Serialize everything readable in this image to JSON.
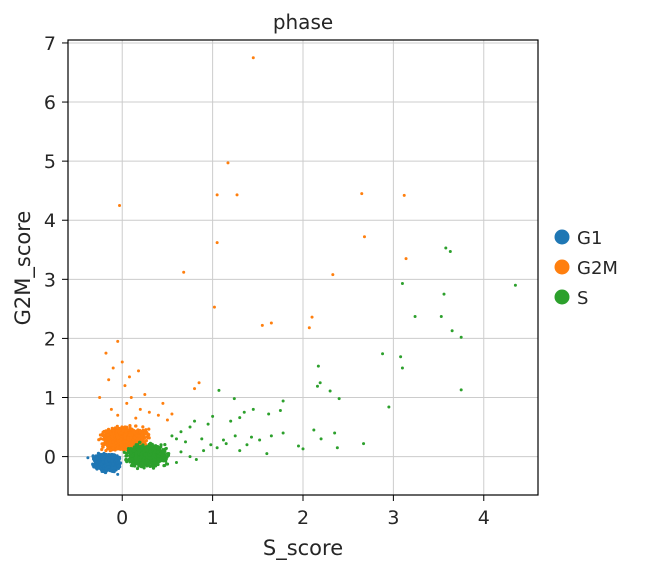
{
  "chart_data": {
    "type": "scatter",
    "title": "phase",
    "xlabel": "S_score",
    "ylabel": "G2M_score",
    "xlim": [
      -0.6,
      4.6
    ],
    "ylim": [
      -0.65,
      7.05
    ],
    "xticks": [
      0,
      1,
      2,
      3,
      4
    ],
    "yticks": [
      0,
      1,
      2,
      3,
      4,
      5,
      6,
      7
    ],
    "grid": true,
    "legend_position": "right",
    "series": [
      {
        "name": "G1",
        "color": "#1f77b4",
        "cluster": {
          "x_range": [
            -0.35,
            0.0
          ],
          "y_range": [
            -0.28,
            0.08
          ],
          "count": 900
        },
        "points": [
          [
            -0.38,
            -0.02
          ],
          [
            -0.3,
            -0.15
          ],
          [
            -0.2,
            -0.25
          ],
          [
            -0.05,
            -0.3
          ]
        ]
      },
      {
        "name": "G2M",
        "color": "#ff7f0e",
        "cluster": {
          "x_range": [
            -0.3,
            0.35
          ],
          "y_range": [
            0.05,
            0.55
          ],
          "count": 1200
        },
        "points": [
          [
            1.45,
            6.75
          ],
          [
            1.17,
            4.97
          ],
          [
            -0.03,
            4.25
          ],
          [
            1.05,
            4.43
          ],
          [
            1.27,
            4.43
          ],
          [
            2.65,
            4.45
          ],
          [
            3.12,
            4.42
          ],
          [
            1.05,
            3.62
          ],
          [
            2.68,
            3.72
          ],
          [
            0.68,
            3.12
          ],
          [
            2.33,
            3.08
          ],
          [
            3.14,
            3.35
          ],
          [
            1.02,
            2.53
          ],
          [
            2.1,
            2.36
          ],
          [
            1.55,
            2.22
          ],
          [
            1.65,
            2.26
          ],
          [
            2.07,
            2.18
          ],
          [
            -0.05,
            1.95
          ],
          [
            -0.18,
            1.75
          ],
          [
            0.0,
            1.6
          ],
          [
            -0.1,
            1.5
          ],
          [
            0.18,
            1.45
          ],
          [
            0.08,
            1.35
          ],
          [
            -0.15,
            1.3
          ],
          [
            0.03,
            1.2
          ],
          [
            0.85,
            1.25
          ],
          [
            0.8,
            1.15
          ],
          [
            0.25,
            1.05
          ],
          [
            0.1,
            1.0
          ],
          [
            -0.25,
            1.0
          ],
          [
            0.45,
            0.9
          ],
          [
            0.05,
            0.9
          ],
          [
            0.2,
            0.8
          ],
          [
            -0.12,
            0.8
          ],
          [
            0.55,
            0.72
          ],
          [
            0.4,
            0.7
          ],
          [
            0.3,
            0.75
          ],
          [
            -0.05,
            0.7
          ],
          [
            0.15,
            0.65
          ],
          [
            0.5,
            0.62
          ]
        ]
      },
      {
        "name": "S",
        "color": "#2ca02c",
        "cluster": {
          "x_range": [
            0.0,
            0.55
          ],
          "y_range": [
            -0.22,
            0.25
          ],
          "count": 1100
        },
        "points": [
          [
            3.58,
            3.53
          ],
          [
            3.63,
            3.47
          ],
          [
            4.35,
            2.9
          ],
          [
            3.1,
            2.93
          ],
          [
            3.56,
            2.75
          ],
          [
            3.24,
            2.37
          ],
          [
            3.53,
            2.37
          ],
          [
            3.65,
            2.13
          ],
          [
            3.75,
            2.02
          ],
          [
            2.88,
            1.74
          ],
          [
            3.08,
            1.69
          ],
          [
            3.1,
            1.5
          ],
          [
            2.17,
            1.53
          ],
          [
            2.19,
            1.25
          ],
          [
            2.16,
            1.19
          ],
          [
            2.3,
            1.11
          ],
          [
            2.4,
            0.98
          ],
          [
            1.07,
            1.12
          ],
          [
            1.24,
            0.98
          ],
          [
            3.75,
            1.13
          ],
          [
            2.95,
            0.84
          ],
          [
            1.78,
            0.94
          ],
          [
            1.75,
            0.78
          ],
          [
            1.62,
            0.72
          ],
          [
            1.45,
            0.8
          ],
          [
            1.35,
            0.75
          ],
          [
            1.3,
            0.66
          ],
          [
            1.2,
            0.6
          ],
          [
            1.0,
            0.68
          ],
          [
            0.95,
            0.55
          ],
          [
            0.8,
            0.6
          ],
          [
            0.75,
            0.5
          ],
          [
            0.65,
            0.42
          ],
          [
            0.55,
            0.35
          ],
          [
            0.6,
            0.3
          ],
          [
            0.7,
            0.25
          ],
          [
            0.88,
            0.3
          ],
          [
            0.98,
            0.2
          ],
          [
            1.05,
            0.15
          ],
          [
            0.9,
            0.1
          ],
          [
            1.15,
            0.22
          ],
          [
            1.3,
            0.1
          ],
          [
            1.38,
            0.2
          ],
          [
            1.43,
            0.33
          ],
          [
            1.52,
            0.28
          ],
          [
            1.65,
            0.35
          ],
          [
            1.6,
            0.05
          ],
          [
            1.78,
            0.4
          ],
          [
            1.95,
            0.18
          ],
          [
            2.0,
            0.13
          ],
          [
            2.12,
            0.45
          ],
          [
            2.2,
            0.3
          ],
          [
            2.35,
            0.4
          ],
          [
            2.38,
            0.15
          ],
          [
            2.67,
            0.22
          ],
          [
            1.25,
            0.35
          ],
          [
            1.12,
            0.28
          ],
          [
            0.45,
            0.12
          ],
          [
            0.5,
            0.05
          ],
          [
            0.4,
            -0.05
          ],
          [
            0.6,
            -0.1
          ],
          [
            0.65,
            0.08
          ],
          [
            0.75,
            0.0
          ],
          [
            0.82,
            -0.05
          ]
        ]
      }
    ]
  }
}
